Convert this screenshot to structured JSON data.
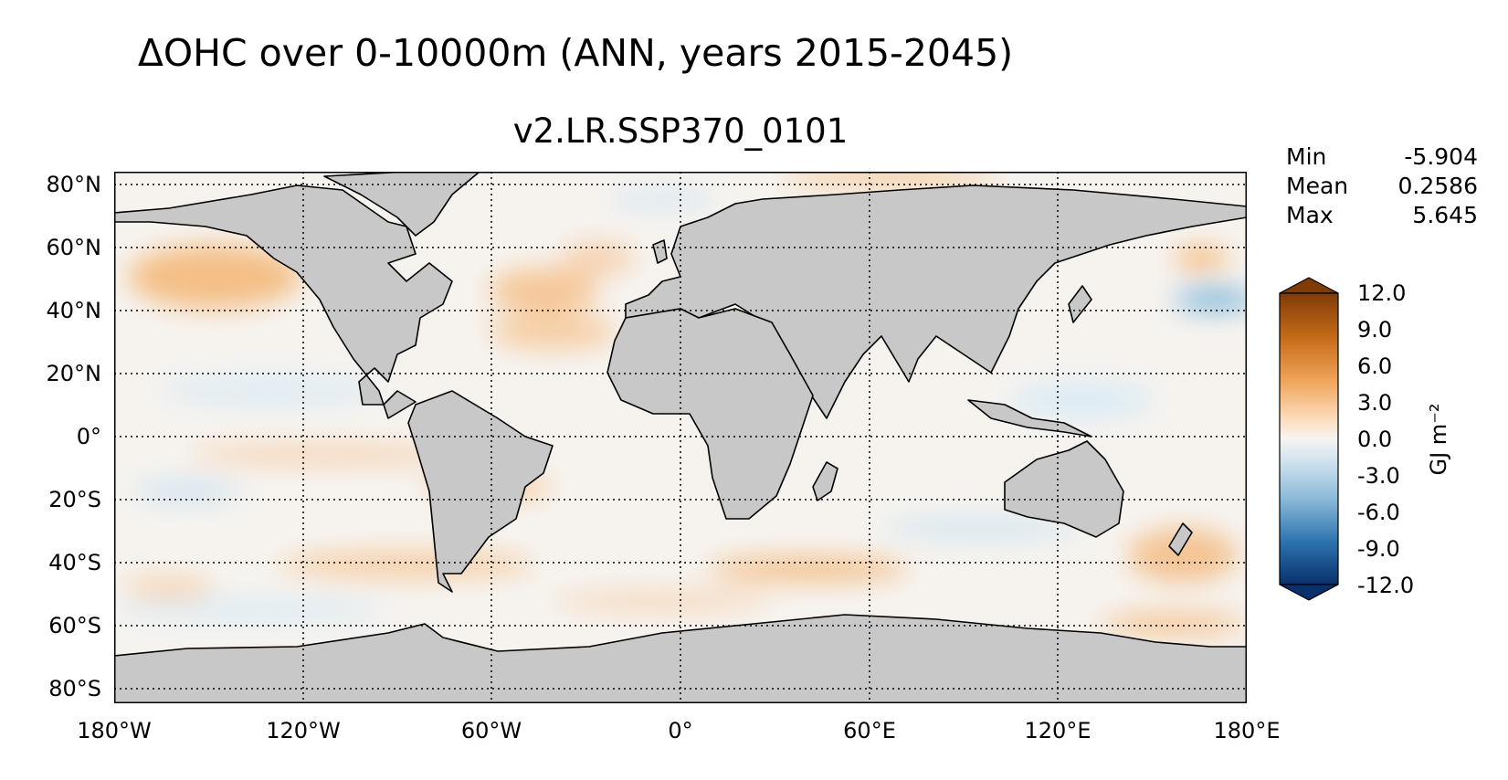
{
  "title": "ΔOHC over 0-10000m (ANN, years 2015-2045)",
  "subtitle": "v2.LR.SSP370_0101",
  "stats": [
    {
      "label": "Min",
      "value": "-5.904"
    },
    {
      "label": "Mean",
      "value": "0.2586"
    },
    {
      "label": "Max",
      "value": "5.645"
    }
  ],
  "lat_labels": [
    "80°N",
    "60°N",
    "40°N",
    "20°N",
    "0°",
    "20°S",
    "40°S",
    "60°S",
    "80°S"
  ],
  "lon_labels": [
    "180°W",
    "120°W",
    "60°W",
    "0°",
    "60°E",
    "120°E",
    "180°E"
  ],
  "colorbar": {
    "ticks": [
      "12.0",
      "9.0",
      "6.0",
      "3.0",
      "0.0",
      "-3.0",
      "-6.0",
      "-9.0",
      "-12.0"
    ],
    "unit": "GJ m⁻²",
    "range": [
      -12,
      12
    ],
    "colormap": "diverging brown-white-blue"
  },
  "colors": {
    "land": "#c8c8c8",
    "ocean_neutral": "#f6f3ef",
    "warm": "#f4b97a",
    "cool": "#bcd9ec"
  }
}
